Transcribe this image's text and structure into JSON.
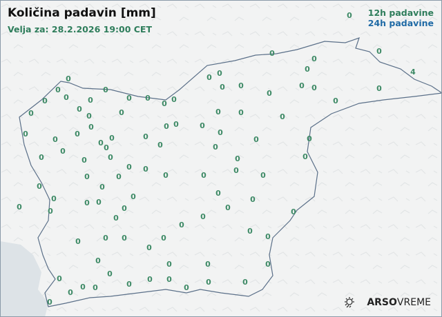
{
  "header": {
    "title": "Količina padavin [mm]",
    "valid_time": "Velja za: 28.2.2026 19:00 CET"
  },
  "legend": {
    "items": [
      {
        "label": "12h padavine",
        "color": "#2e7d5b"
      },
      {
        "label": "24h padavine",
        "color": "#1f6aa5"
      }
    ]
  },
  "branding": {
    "brand_bold": "ARSO",
    "brand_light": "VREME",
    "icon": "sun-cloud-icon"
  },
  "colors": {
    "land": "#f2f3f3",
    "sea": "#dde3e7",
    "border": "#5a6f88",
    "value_text": "#3e8a66"
  },
  "stations": {
    "unit": "mm",
    "values": [
      "0",
      "0",
      "0",
      "0",
      "0",
      "0",
      "0",
      "0",
      "0",
      "4",
      "0",
      "0",
      "0",
      "0",
      "0",
      "0",
      "0",
      "0",
      "0",
      "0",
      "0",
      "0",
      "0",
      "0",
      "0",
      "0",
      "0",
      "0",
      "0",
      "0",
      "0",
      "0",
      "0",
      "0",
      "0",
      "0",
      "0",
      "0",
      "0",
      "0",
      "0",
      "0",
      "0",
      "0",
      "0",
      "0",
      "0",
      "0",
      "0",
      "0",
      "0",
      "0",
      "0",
      "0",
      "0",
      "0",
      "0",
      "0",
      "0",
      "0",
      "0",
      "0",
      "0",
      "0",
      "0",
      "0",
      "0",
      "0",
      "0",
      "0",
      "0",
      "0",
      "0",
      "0",
      "0",
      "0",
      "0",
      "0",
      "0",
      "0",
      "0",
      "0",
      "0",
      "0",
      "0",
      "0",
      "0",
      "0",
      "0",
      "0",
      "0",
      "0",
      "0",
      "0",
      "0",
      "0",
      "0",
      "0",
      "0",
      "0",
      "0"
    ]
  }
}
